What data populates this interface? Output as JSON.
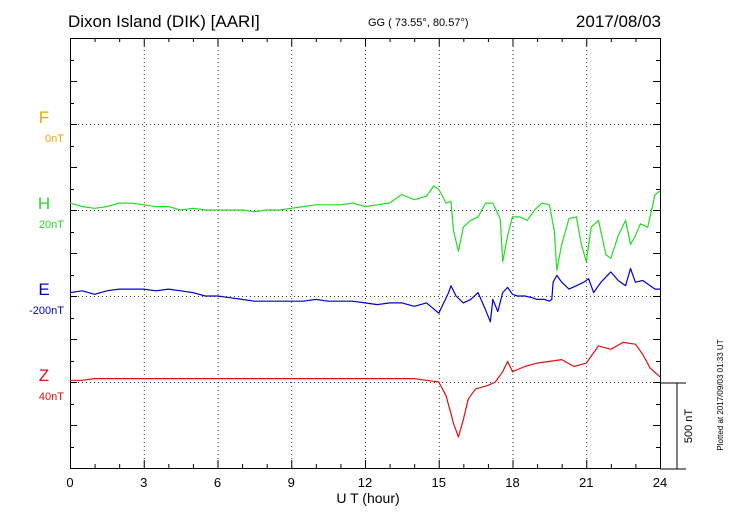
{
  "header": {
    "title": "Dixon Island (DIK)  [AARI]",
    "coords": "GG ( 73.55°,  80.57°)",
    "date": "2017/08/03"
  },
  "footnote": "Plotted at 2017/09/03 01:33 UT",
  "scale_bar": {
    "label": "500 nT",
    "value": 500
  },
  "colors": {
    "F": "#f5a300",
    "H": "#22dd22",
    "E": "#0000cc",
    "Z": "#dd1111"
  },
  "chart_data": {
    "type": "line",
    "title": "Dixon Island (DIK)  [AARI]",
    "xlabel": "U T (hour)",
    "ylabel": "",
    "xlim": [
      0,
      24
    ],
    "x_ticks": [
      0,
      3,
      6,
      9,
      12,
      15,
      18,
      21,
      24
    ],
    "grid": true,
    "channels": [
      {
        "name": "F",
        "baseline_label": "0nT",
        "color": "#f5a300",
        "has_data": false
      },
      {
        "name": "H",
        "baseline_label": "20nT",
        "color": "#22dd22",
        "has_data": true
      },
      {
        "name": "E",
        "baseline_label": "-200nT",
        "color": "#0000cc",
        "has_data": true
      },
      {
        "name": "Z",
        "baseline_label": "40nT",
        "color": "#dd1111",
        "has_data": true
      }
    ],
    "series": [
      {
        "name": "H",
        "unit": "nT offset from baseline",
        "points": [
          [
            0,
            -40
          ],
          [
            0.5,
            -20
          ],
          [
            1,
            -10
          ],
          [
            1.5,
            -20
          ],
          [
            2,
            -40
          ],
          [
            2.5,
            -40
          ],
          [
            3,
            -30
          ],
          [
            3.5,
            -20
          ],
          [
            4,
            -20
          ],
          [
            4.5,
            0
          ],
          [
            5,
            -10
          ],
          [
            5.5,
            0
          ],
          [
            6,
            0
          ],
          [
            6.5,
            0
          ],
          [
            7,
            0
          ],
          [
            7.5,
            10
          ],
          [
            8,
            0
          ],
          [
            8.5,
            0
          ],
          [
            9,
            -10
          ],
          [
            9.5,
            -20
          ],
          [
            10,
            -30
          ],
          [
            10.5,
            -30
          ],
          [
            11,
            -30
          ],
          [
            11.5,
            -40
          ],
          [
            12,
            -20
          ],
          [
            12.5,
            -30
          ],
          [
            13,
            -40
          ],
          [
            13.5,
            -90
          ],
          [
            14,
            -60
          ],
          [
            14.5,
            -80
          ],
          [
            14.8,
            -140
          ],
          [
            15,
            -120
          ],
          [
            15.3,
            -40
          ],
          [
            15.5,
            -50
          ],
          [
            15.6,
            120
          ],
          [
            15.8,
            240
          ],
          [
            16,
            100
          ],
          [
            16.3,
            60
          ],
          [
            16.6,
            40
          ],
          [
            16.9,
            -40
          ],
          [
            17.2,
            -40
          ],
          [
            17.5,
            50
          ],
          [
            17.6,
            300
          ],
          [
            17.8,
            150
          ],
          [
            18,
            40
          ],
          [
            18.3,
            40
          ],
          [
            18.6,
            60
          ],
          [
            18.9,
            0
          ],
          [
            19.2,
            -40
          ],
          [
            19.5,
            -30
          ],
          [
            19.7,
            120
          ],
          [
            19.8,
            350
          ],
          [
            20,
            200
          ],
          [
            20.3,
            50
          ],
          [
            20.6,
            40
          ],
          [
            20.8,
            200
          ],
          [
            21,
            300
          ],
          [
            21.2,
            100
          ],
          [
            21.5,
            60
          ],
          [
            21.8,
            260
          ],
          [
            22,
            280
          ],
          [
            22.3,
            150
          ],
          [
            22.6,
            60
          ],
          [
            22.8,
            200
          ],
          [
            23,
            150
          ],
          [
            23.2,
            80
          ],
          [
            23.5,
            100
          ],
          [
            23.8,
            -90
          ],
          [
            24,
            -110
          ]
        ]
      },
      {
        "name": "E",
        "unit": "nT offset from baseline",
        "points": [
          [
            0,
            -20
          ],
          [
            0.5,
            -30
          ],
          [
            1,
            -10
          ],
          [
            1.5,
            -30
          ],
          [
            2,
            -40
          ],
          [
            2.5,
            -40
          ],
          [
            3,
            -40
          ],
          [
            3.5,
            -30
          ],
          [
            4,
            -40
          ],
          [
            4.5,
            -30
          ],
          [
            5,
            -20
          ],
          [
            5.5,
            0
          ],
          [
            6,
            0
          ],
          [
            6.5,
            10
          ],
          [
            7,
            20
          ],
          [
            7.5,
            30
          ],
          [
            8,
            30
          ],
          [
            8.5,
            30
          ],
          [
            9,
            30
          ],
          [
            9.5,
            30
          ],
          [
            10,
            20
          ],
          [
            10.5,
            30
          ],
          [
            11,
            30
          ],
          [
            11.5,
            30
          ],
          [
            12,
            40
          ],
          [
            12.5,
            50
          ],
          [
            13,
            40
          ],
          [
            13.5,
            40
          ],
          [
            14,
            60
          ],
          [
            14.5,
            40
          ],
          [
            15,
            100
          ],
          [
            15.2,
            40
          ],
          [
            15.4,
            -20
          ],
          [
            15.5,
            -60
          ],
          [
            15.7,
            0
          ],
          [
            16,
            40
          ],
          [
            16.3,
            20
          ],
          [
            16.6,
            -20
          ],
          [
            16.9,
            80
          ],
          [
            17.1,
            150
          ],
          [
            17.2,
            20
          ],
          [
            17.4,
            90
          ],
          [
            17.6,
            -20
          ],
          [
            17.8,
            -50
          ],
          [
            18,
            -10
          ],
          [
            18.2,
            0
          ],
          [
            18.5,
            0
          ],
          [
            18.8,
            10
          ],
          [
            19,
            20
          ],
          [
            19.3,
            20
          ],
          [
            19.5,
            30
          ],
          [
            19.6,
            20
          ],
          [
            19.65,
            -80
          ],
          [
            19.8,
            -120
          ],
          [
            20,
            -80
          ],
          [
            20.3,
            -40
          ],
          [
            20.6,
            -60
          ],
          [
            20.9,
            -80
          ],
          [
            21.1,
            -100
          ],
          [
            21.3,
            -20
          ],
          [
            21.6,
            -80
          ],
          [
            22,
            -140
          ],
          [
            22.3,
            -90
          ],
          [
            22.6,
            -60
          ],
          [
            22.8,
            -160
          ],
          [
            23,
            -80
          ],
          [
            23.3,
            -90
          ],
          [
            23.6,
            -60
          ],
          [
            23.8,
            -40
          ],
          [
            24,
            -40
          ]
        ]
      },
      {
        "name": "Z",
        "unit": "nT offset from baseline",
        "points": [
          [
            0,
            -10
          ],
          [
            0.5,
            -10
          ],
          [
            1,
            -20
          ],
          [
            2,
            -20
          ],
          [
            3,
            -20
          ],
          [
            4,
            -20
          ],
          [
            5,
            -20
          ],
          [
            6,
            -20
          ],
          [
            7,
            -20
          ],
          [
            8,
            -20
          ],
          [
            9,
            -20
          ],
          [
            10,
            -20
          ],
          [
            11,
            -20
          ],
          [
            12,
            -20
          ],
          [
            13,
            -20
          ],
          [
            14,
            -20
          ],
          [
            14.5,
            -10
          ],
          [
            15,
            0
          ],
          [
            15.3,
            80
          ],
          [
            15.6,
            240
          ],
          [
            15.8,
            320
          ],
          [
            16,
            220
          ],
          [
            16.2,
            100
          ],
          [
            16.5,
            40
          ],
          [
            17,
            20
          ],
          [
            17.3,
            0
          ],
          [
            17.6,
            -60
          ],
          [
            17.8,
            -120
          ],
          [
            18,
            -60
          ],
          [
            18.5,
            -90
          ],
          [
            19,
            -110
          ],
          [
            19.5,
            -120
          ],
          [
            20,
            -130
          ],
          [
            20.5,
            -90
          ],
          [
            21,
            -110
          ],
          [
            21.5,
            -210
          ],
          [
            22,
            -190
          ],
          [
            22.5,
            -230
          ],
          [
            23,
            -220
          ],
          [
            23.3,
            -160
          ],
          [
            23.6,
            -80
          ],
          [
            24,
            -30
          ]
        ]
      }
    ]
  }
}
